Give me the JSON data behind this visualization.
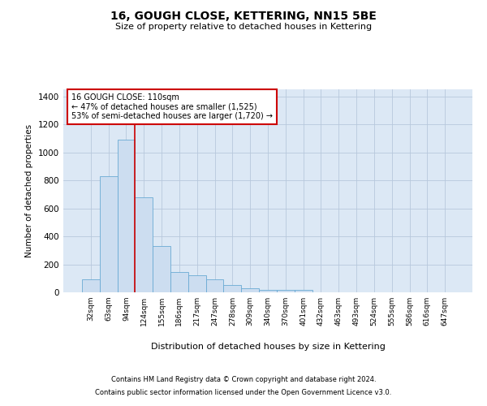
{
  "title": "16, GOUGH CLOSE, KETTERING, NN15 5BE",
  "subtitle": "Size of property relative to detached houses in Kettering",
  "xlabel": "Distribution of detached houses by size in Kettering",
  "ylabel": "Number of detached properties",
  "bar_color": "#ccddf0",
  "bar_edge_color": "#6aaad4",
  "background_color": "#ffffff",
  "plot_bg_color": "#dce8f5",
  "grid_color": "#b8c8dc",
  "annotation_box_color": "#cc0000",
  "vline_color": "#cc0000",
  "categories": [
    "32sqm",
    "63sqm",
    "94sqm",
    "124sqm",
    "155sqm",
    "186sqm",
    "217sqm",
    "247sqm",
    "278sqm",
    "309sqm",
    "340sqm",
    "370sqm",
    "401sqm",
    "432sqm",
    "463sqm",
    "493sqm",
    "524sqm",
    "555sqm",
    "586sqm",
    "616sqm",
    "647sqm"
  ],
  "values": [
    90,
    830,
    1090,
    680,
    330,
    145,
    120,
    90,
    55,
    30,
    20,
    20,
    20,
    0,
    0,
    0,
    0,
    0,
    0,
    0,
    0
  ],
  "ylim": [
    0,
    1450
  ],
  "yticks": [
    0,
    200,
    400,
    600,
    800,
    1000,
    1200,
    1400
  ],
  "vline_x_index": 2.5,
  "annotation_text": "16 GOUGH CLOSE: 110sqm\n← 47% of detached houses are smaller (1,525)\n53% of semi-detached houses are larger (1,720) →",
  "footnote1": "Contains HM Land Registry data © Crown copyright and database right 2024.",
  "footnote2": "Contains public sector information licensed under the Open Government Licence v3.0."
}
